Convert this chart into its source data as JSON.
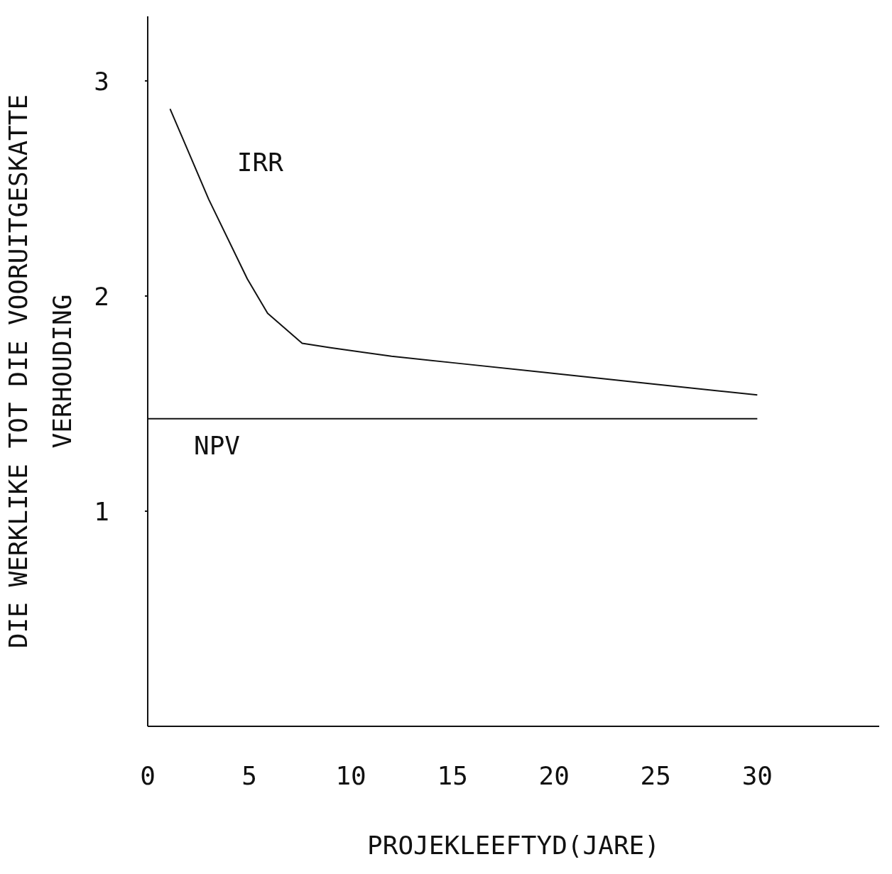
{
  "chart_data": {
    "type": "line",
    "xlabel": "PROJEKLEEFTYD(JARE)",
    "ylabel": "DIE WERKLIKE TOT DIE VOORUITGESKATTE\nVERHOUDING",
    "xlim": [
      0,
      36
    ],
    "ylim": [
      0,
      3.3
    ],
    "xticks": [
      0,
      5,
      10,
      15,
      20,
      25,
      30
    ],
    "yticks": [
      1,
      2,
      3
    ],
    "grid": false,
    "legend": false,
    "marker": "none",
    "line_style": "solid",
    "series": [
      {
        "name": "IRR",
        "color": "#111111",
        "x": [
          1.1,
          3,
          4.9,
          5.9,
          7.6,
          9,
          12,
          15,
          20,
          25,
          30
        ],
        "values": [
          2.87,
          2.45,
          2.08,
          1.92,
          1.78,
          1.76,
          1.72,
          1.69,
          1.64,
          1.59,
          1.54
        ]
      },
      {
        "name": "NPV",
        "color": "#111111",
        "x": [
          0,
          30
        ],
        "values": [
          1.43,
          1.43
        ]
      }
    ]
  }
}
